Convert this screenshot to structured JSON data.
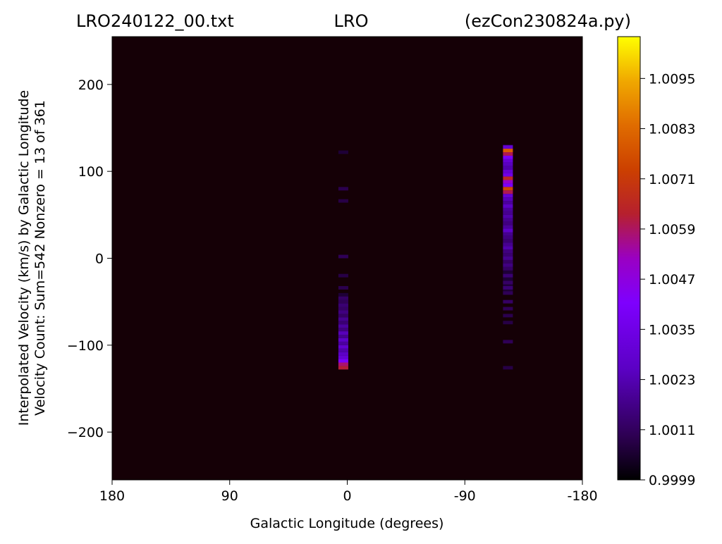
{
  "chart_data": {
    "type": "heatmap",
    "title_parts": [
      "LRO240122_00.txt",
      "LRO",
      "(ezCon230824a.py)"
    ],
    "xlabel": "Galactic Longitude (degrees)",
    "ylabel_lines": [
      "Interpolated Velocity (km/s) by Galactic Longitude",
      "Velocity Count: Sum=542 Nonzero = 13 of 361"
    ],
    "x_range": [
      180,
      -180
    ],
    "x_ticks": [
      180,
      90,
      0,
      -90,
      -180
    ],
    "x_tick_labels": [
      "180",
      "90",
      "0",
      "-90",
      "-180"
    ],
    "y_range": [
      -255,
      255
    ],
    "y_ticks": [
      200,
      100,
      0,
      -100,
      -200
    ],
    "y_tick_labels": [
      "200",
      "100",
      "0",
      "−100",
      "−200"
    ],
    "colormap": "gnuplot",
    "background_color": "#150006",
    "colorbar": {
      "range": [
        0.9999,
        1.0105
      ],
      "ticks": [
        1.0095,
        1.0083,
        1.0071,
        1.0059,
        1.0047,
        1.0035,
        1.0023,
        1.0011,
        0.9999
      ],
      "tick_labels": [
        "1.0095",
        "1.0083",
        "1.0071",
        "1.0059",
        "1.0047",
        "1.0035",
        "1.0023",
        "1.0011",
        "0.9999"
      ]
    },
    "columns": [
      {
        "galactic_longitude": 3,
        "vmin": -128,
        "vmax": -40,
        "cells": [
          {
            "v": -126,
            "value": 1.0062
          },
          {
            "v": -122,
            "value": 1.0058
          },
          {
            "v": -118,
            "value": 1.004
          },
          {
            "v": -114,
            "value": 1.003
          },
          {
            "v": -110,
            "value": 1.0026
          },
          {
            "v": -106,
            "value": 1.0022
          },
          {
            "v": -102,
            "value": 1.0028
          },
          {
            "v": -98,
            "value": 1.002
          },
          {
            "v": -94,
            "value": 1.0026
          },
          {
            "v": -90,
            "value": 1.0018
          },
          {
            "v": -86,
            "value": 1.0024
          },
          {
            "v": -82,
            "value": 1.0016
          },
          {
            "v": -78,
            "value": 1.002
          },
          {
            "v": -74,
            "value": 1.0014
          },
          {
            "v": -70,
            "value": 1.0018
          },
          {
            "v": -66,
            "value": 1.0012
          },
          {
            "v": -62,
            "value": 1.0016
          },
          {
            "v": -58,
            "value": 1.0012
          },
          {
            "v": -54,
            "value": 1.0014
          },
          {
            "v": -50,
            "value": 1.001
          },
          {
            "v": -46,
            "value": 1.0012
          },
          {
            "v": -34,
            "value": 1.0009
          },
          {
            "v": -20,
            "value": 1.0008
          },
          {
            "v": 2,
            "value": 1.001
          },
          {
            "v": 66,
            "value": 1.0008
          },
          {
            "v": 80,
            "value": 1.0009
          },
          {
            "v": 122,
            "value": 1.0006
          }
        ]
      },
      {
        "galactic_longitude": -123,
        "vmin": -42,
        "vmax": 131,
        "cells": [
          {
            "v": 128,
            "value": 1.003
          },
          {
            "v": 124,
            "value": 1.008
          },
          {
            "v": 120,
            "value": 1.006
          },
          {
            "v": 116,
            "value": 1.004
          },
          {
            "v": 112,
            "value": 1.003
          },
          {
            "v": 108,
            "value": 1.0025
          },
          {
            "v": 104,
            "value": 1.0022
          },
          {
            "v": 100,
            "value": 1.003
          },
          {
            "v": 96,
            "value": 1.0035
          },
          {
            "v": 92,
            "value": 1.0065
          },
          {
            "v": 88,
            "value": 1.005
          },
          {
            "v": 84,
            "value": 1.004
          },
          {
            "v": 80,
            "value": 1.0075
          },
          {
            "v": 76,
            "value": 1.006
          },
          {
            "v": 72,
            "value": 1.003
          },
          {
            "v": 68,
            "value": 1.0024
          },
          {
            "v": 64,
            "value": 1.002
          },
          {
            "v": 60,
            "value": 1.0026
          },
          {
            "v": 56,
            "value": 1.002
          },
          {
            "v": 52,
            "value": 1.0018
          },
          {
            "v": 48,
            "value": 1.0022
          },
          {
            "v": 44,
            "value": 1.0018
          },
          {
            "v": 40,
            "value": 1.0016
          },
          {
            "v": 36,
            "value": 1.002
          },
          {
            "v": 32,
            "value": 1.0026
          },
          {
            "v": 28,
            "value": 1.0018
          },
          {
            "v": 24,
            "value": 1.0016
          },
          {
            "v": 20,
            "value": 1.0014
          },
          {
            "v": 16,
            "value": 1.0018
          },
          {
            "v": 12,
            "value": 1.0022
          },
          {
            "v": 8,
            "value": 1.0016
          },
          {
            "v": 4,
            "value": 1.0014
          },
          {
            "v": 0,
            "value": 1.0018
          },
          {
            "v": -4,
            "value": 1.0012
          },
          {
            "v": -8,
            "value": 1.0016
          },
          {
            "v": -12,
            "value": 1.0012
          },
          {
            "v": -20,
            "value": 1.0014
          },
          {
            "v": -28,
            "value": 1.0012
          },
          {
            "v": -34,
            "value": 1.0014
          },
          {
            "v": -40,
            "value": 1.001
          },
          {
            "v": -50,
            "value": 1.0012
          },
          {
            "v": -58,
            "value": 1.001
          },
          {
            "v": -66,
            "value": 1.0009
          },
          {
            "v": -74,
            "value": 1.0008
          },
          {
            "v": -96,
            "value": 1.001
          },
          {
            "v": -126,
            "value": 1.0008
          }
        ]
      }
    ]
  }
}
